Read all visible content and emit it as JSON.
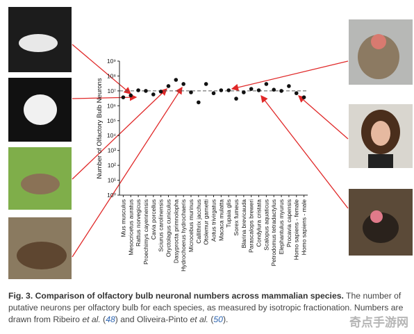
{
  "chart_data": {
    "type": "scatter",
    "y_label": "Number of Olfactory Bulb Neurons",
    "log_scale": true,
    "categories": [
      "Mus musculus",
      "Mesocricetus auratus",
      "Rattus norvegicus",
      "Proechimys cayennensis",
      "Cavia porcellus",
      "Sciurus carolinensis",
      "Oryctolagus cuniculus",
      "Dasyprocta primnolopha",
      "Hydrochoerus hydrochaeris",
      "Microcebus murinus",
      "Callithrix jacchus",
      "Otolemur garnetti",
      "Aotus trivirgatus",
      "Macaca mulatta",
      "Tupaia glis",
      "Sorex fumeus",
      "Blarina brevicauda",
      "Parascalops breweri",
      "Condylura cristata",
      "Scalopus aquaticus",
      "Petrodomus tetradactylus",
      "Elephantulus myurus",
      "Procavia capensis",
      "Homo sapiens - female",
      "Homo sapiens - male"
    ],
    "values": [
      3700000,
      5000000,
      11000000,
      10000000,
      5800000,
      9000000,
      21000000,
      55000000,
      29000000,
      8000000,
      1700000,
      29000000,
      7000000,
      11000000,
      11000000,
      3000000,
      8000000,
      13500000,
      11000000,
      29000000,
      12000000,
      10000000,
      21000000,
      7000000,
      3700000
    ],
    "color": "#111111",
    "reference_line": 10000000,
    "ylim": [
      1,
      1000000000
    ],
    "yticks": [
      {
        "value": 1,
        "label": "10⁰"
      },
      {
        "value": 10,
        "label": "10¹"
      },
      {
        "value": 100,
        "label": "10²"
      },
      {
        "value": 1000,
        "label": "10³"
      },
      {
        "value": 10000,
        "label": "10⁴"
      },
      {
        "value": 100000,
        "label": "10⁵"
      },
      {
        "value": 1000000,
        "label": "10⁶"
      },
      {
        "value": 10000000,
        "label": "10⁷"
      },
      {
        "value": 100000000,
        "label": "10⁸"
      },
      {
        "value": 1000000000,
        "label": "10⁹"
      }
    ]
  },
  "caption": {
    "parts": [
      {
        "text": "Fig. 3. Comparison of olfactory bulb neuronal numbers across mammalian species.",
        "style": "bold"
      },
      {
        "text": " The number of putative neurons per olfactory bulb for each species, as measured by isotropic fractionation. Numbers are drawn from Ribeiro ",
        "style": "plain"
      },
      {
        "text": "et al.",
        "style": "italic"
      },
      {
        "text": " (",
        "style": "plain"
      },
      {
        "text": "48",
        "style": "link"
      },
      {
        "text": ") and Oliveira-Pinto ",
        "style": "plain"
      },
      {
        "text": "et al.",
        "style": "italic"
      },
      {
        "text": " (",
        "style": "plain"
      },
      {
        "text": "50",
        "style": "link"
      },
      {
        "text": ").",
        "style": "plain"
      }
    ]
  },
  "watermark": "奇点手游网"
}
